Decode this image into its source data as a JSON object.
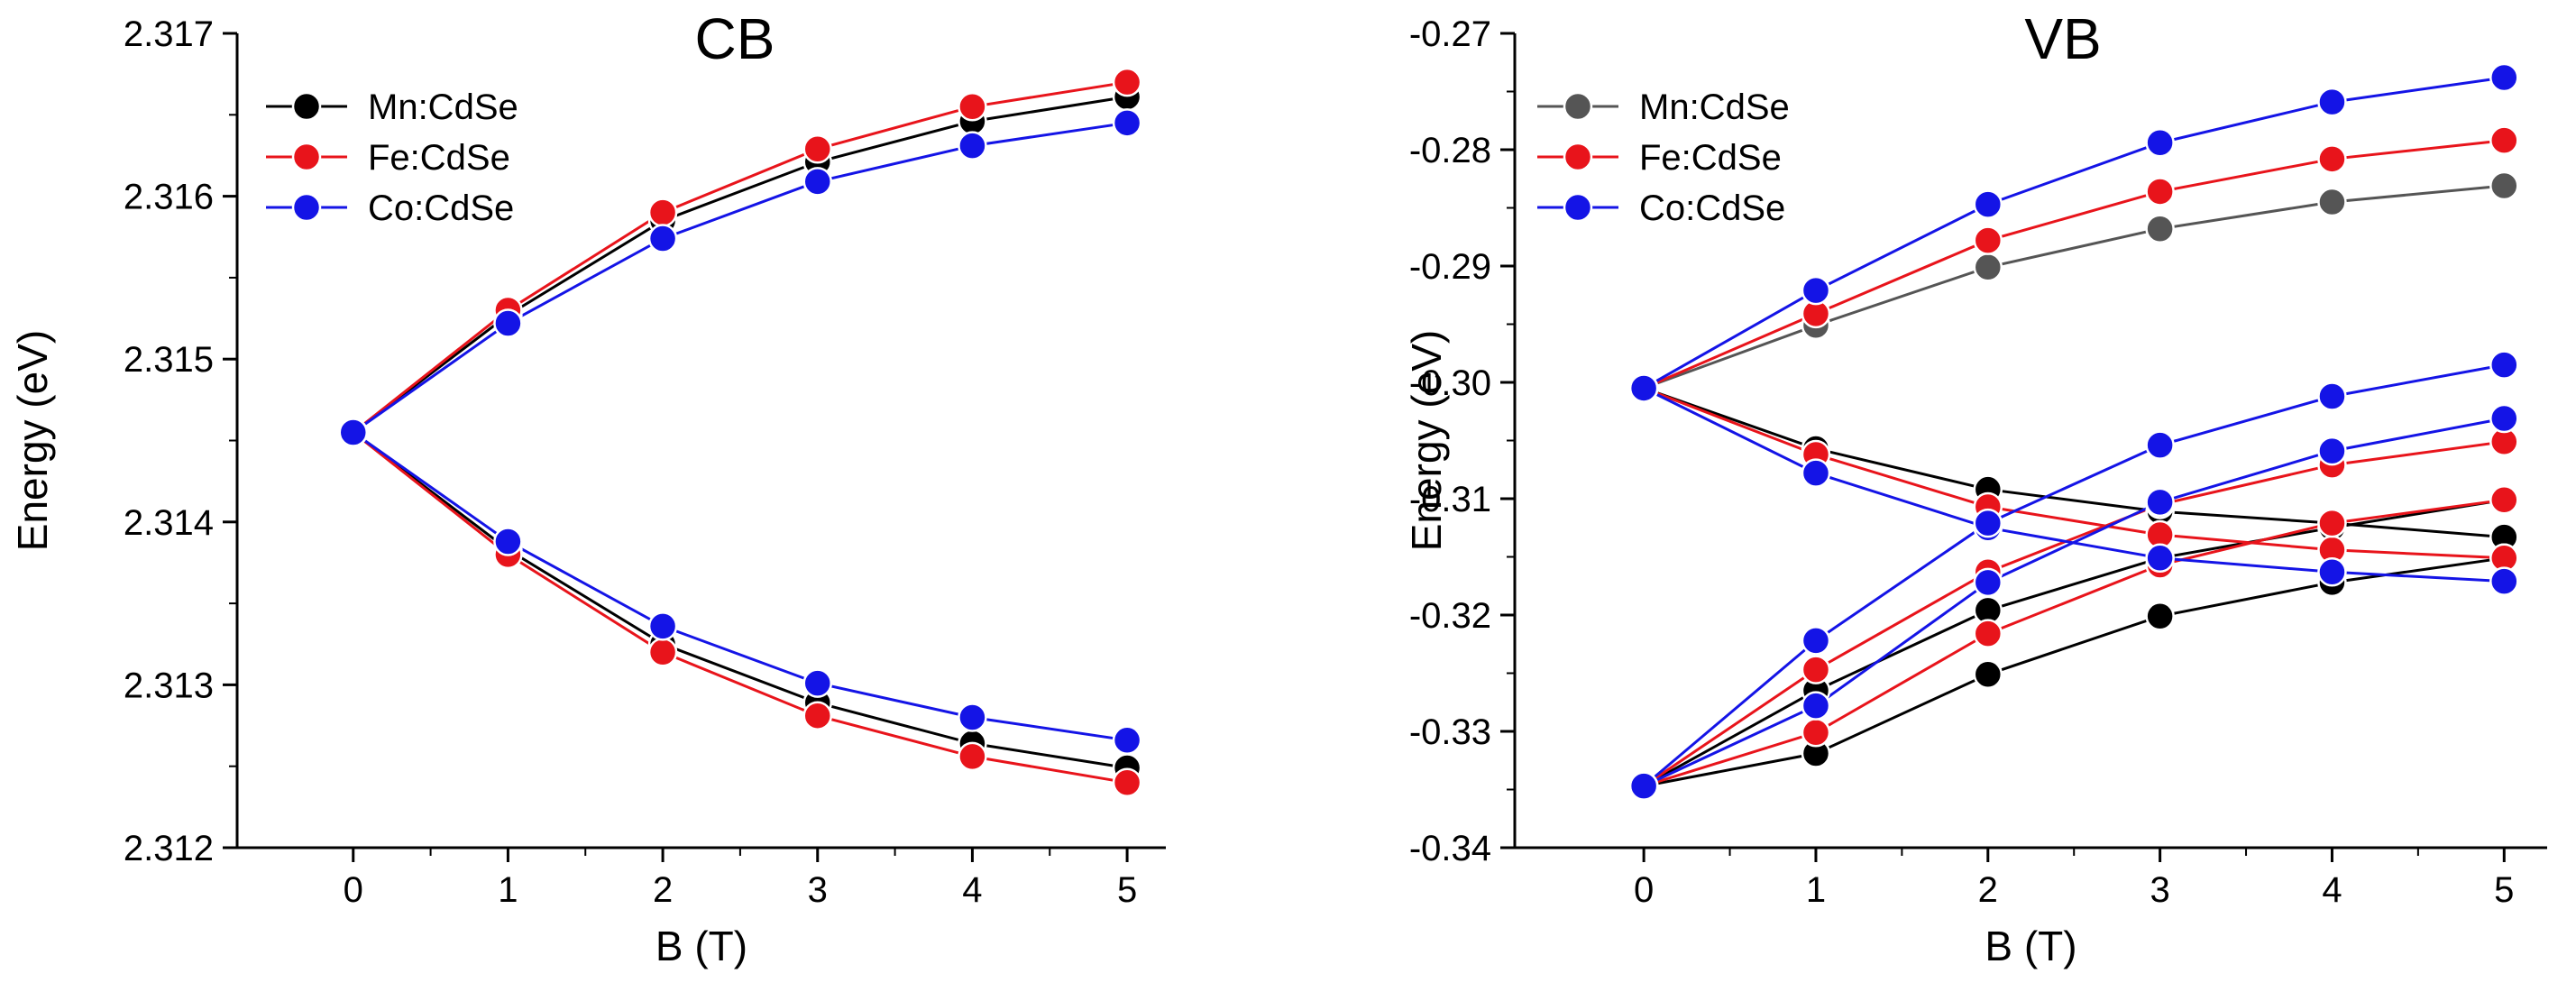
{
  "chart_data": [
    {
      "id": "cb",
      "type": "line",
      "title": "CB",
      "xlabel": "B (T)",
      "ylabel": "Energy (eV)",
      "xlim": [
        -0.75,
        5.25
      ],
      "ylim": [
        2.312,
        2.317
      ],
      "xticks": [
        "0",
        "1",
        "2",
        "3",
        "4",
        "5"
      ],
      "yticks": [
        "2.312",
        "2.313",
        "2.314",
        "2.315",
        "2.316",
        "2.317"
      ],
      "grid": false,
      "legend_position": "top-left",
      "x": [
        0,
        1,
        2,
        3,
        4,
        5
      ],
      "legend": [
        {
          "name": "Mn:CdSe",
          "color": "#000000"
        },
        {
          "name": "Fe:CdSe",
          "color": "#e8141b"
        },
        {
          "name": "Co:CdSe",
          "color": "#1414e6"
        }
      ],
      "series": [
        {
          "name": "Mn:CdSe upper",
          "color": "#000000",
          "values": [
            2.31455,
            2.31527,
            2.31585,
            2.31621,
            2.31646,
            2.31661
          ]
        },
        {
          "name": "Mn:CdSe lower",
          "color": "#000000",
          "values": [
            2.31455,
            2.31383,
            2.31325,
            2.31289,
            2.31264,
            2.31249
          ]
        },
        {
          "name": "Fe:CdSe upper",
          "color": "#e8141b",
          "values": [
            2.31455,
            2.3153,
            2.3159,
            2.31629,
            2.31655,
            2.3167
          ]
        },
        {
          "name": "Fe:CdSe lower",
          "color": "#e8141b",
          "values": [
            2.31455,
            2.3138,
            2.3132,
            2.31281,
            2.31256,
            2.3124
          ]
        },
        {
          "name": "Co:CdSe upper",
          "color": "#1414e6",
          "values": [
            2.31455,
            2.31522,
            2.31574,
            2.31609,
            2.31631,
            2.31645
          ]
        },
        {
          "name": "Co:CdSe lower",
          "color": "#1414e6",
          "values": [
            2.31455,
            2.31388,
            2.31336,
            2.31301,
            2.3128,
            2.31266
          ]
        }
      ]
    },
    {
      "id": "vb",
      "type": "line",
      "title": "VB",
      "xlabel": "B (T)",
      "ylabel": "Energy (eV)",
      "xlim": [
        -0.75,
        5.25
      ],
      "ylim": [
        -0.34,
        -0.27
      ],
      "xticks": [
        "0",
        "1",
        "2",
        "3",
        "4",
        "5"
      ],
      "yticks": [
        "-0.34",
        "-0.33",
        "-0.32",
        "-0.31",
        "-0.30",
        "-0.29",
        "-0.28",
        "-0.27"
      ],
      "grid": false,
      "legend_position": "top-left",
      "x": [
        0,
        1,
        2,
        3,
        4,
        5
      ],
      "legend": [
        {
          "name": "Mn:CdSe",
          "color": "#555555"
        },
        {
          "name": "Fe:CdSe",
          "color": "#e8141b"
        },
        {
          "name": "Co:CdSe",
          "color": "#1414e6"
        }
      ],
      "series": [
        {
          "name": "Mn:CdSe top",
          "color": "#555555",
          "values": [
            -0.3005,
            -0.2951,
            -0.2901,
            -0.2868,
            -0.2845,
            -0.2831
          ]
        },
        {
          "name": "Mn:CdSe mid",
          "color": "#000000",
          "values": [
            -0.3005,
            -0.3057,
            -0.3092,
            -0.3111,
            -0.3121,
            -0.3133
          ]
        },
        {
          "name": "Mn:CdSe low-a",
          "color": "#000000",
          "values": [
            -0.3347,
            -0.3265,
            -0.3196,
            -0.3151,
            -0.3125,
            -0.3101
          ]
        },
        {
          "name": "Mn:CdSe low-b",
          "color": "#000000",
          "values": [
            -0.3347,
            -0.3319,
            -0.3251,
            -0.3201,
            -0.3172,
            -0.3151
          ]
        },
        {
          "name": "Fe:CdSe top",
          "color": "#e8141b",
          "values": [
            -0.3005,
            -0.2941,
            -0.2878,
            -0.2836,
            -0.2808,
            -0.2792
          ]
        },
        {
          "name": "Fe:CdSe mid",
          "color": "#e8141b",
          "values": [
            -0.3005,
            -0.3062,
            -0.3107,
            -0.3131,
            -0.3144,
            -0.3151
          ]
        },
        {
          "name": "Fe:CdSe low-a",
          "color": "#e8141b",
          "values": [
            -0.3347,
            -0.3247,
            -0.3163,
            -0.3105,
            -0.3071,
            -0.3051
          ]
        },
        {
          "name": "Fe:CdSe low-b",
          "color": "#e8141b",
          "values": [
            -0.3347,
            -0.3301,
            -0.3216,
            -0.3157,
            -0.3121,
            -0.3101
          ]
        },
        {
          "name": "Co:CdSe top",
          "color": "#1414e6",
          "values": [
            -0.3005,
            -0.2921,
            -0.2847,
            -0.2794,
            -0.2759,
            -0.2738
          ]
        },
        {
          "name": "Co:CdSe mid",
          "color": "#1414e6",
          "values": [
            -0.3005,
            -0.3078,
            -0.3125,
            -0.3151,
            -0.3163,
            -0.3171
          ]
        },
        {
          "name": "Co:CdSe low-a",
          "color": "#1414e6",
          "values": [
            -0.3347,
            -0.3222,
            -0.3121,
            -0.3054,
            -0.3012,
            -0.2985
          ]
        },
        {
          "name": "Co:CdSe low-b",
          "color": "#1414e6",
          "values": [
            -0.3347,
            -0.3278,
            -0.3172,
            -0.3103,
            -0.3059,
            -0.3031
          ]
        }
      ]
    }
  ]
}
